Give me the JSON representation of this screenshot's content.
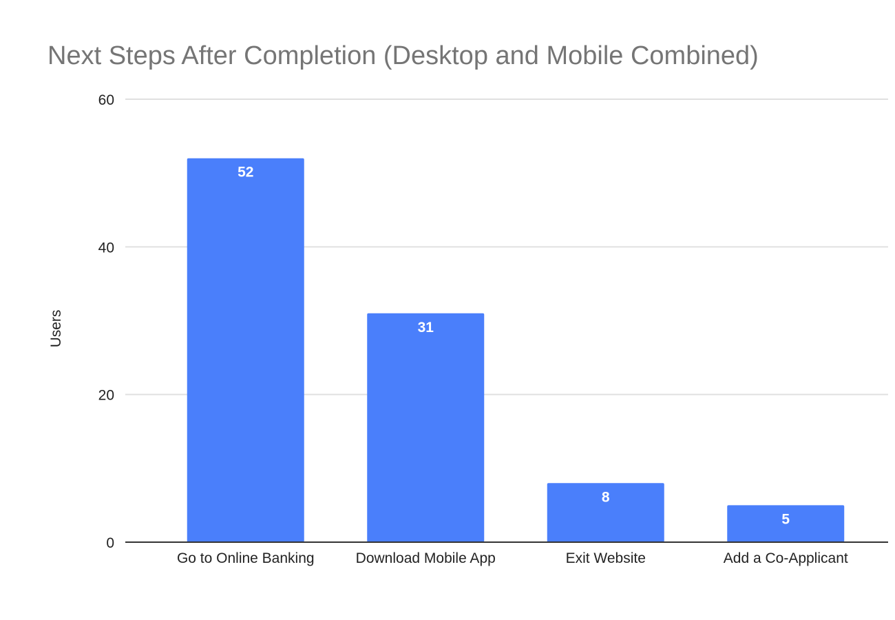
{
  "chart_data": {
    "type": "bar",
    "title": "Next Steps After Completion (Desktop and Mobile Combined)",
    "xlabel": "",
    "ylabel": "Users",
    "categories": [
      "Go to Online Banking",
      "Download Mobile App",
      "Exit Website",
      "Add a Co-Applicant"
    ],
    "values": [
      52,
      31,
      8,
      5
    ],
    "ylim": [
      0,
      60
    ],
    "yticks": [
      0,
      20,
      40,
      60
    ],
    "grid": true,
    "legend": "none",
    "colors": {
      "bar": "#4a7ffb",
      "bar_label": "#ffffff",
      "gridline": "#e0e0e0",
      "axis_line": "#333333",
      "title": "#757575",
      "tick_label": "#222222"
    }
  }
}
